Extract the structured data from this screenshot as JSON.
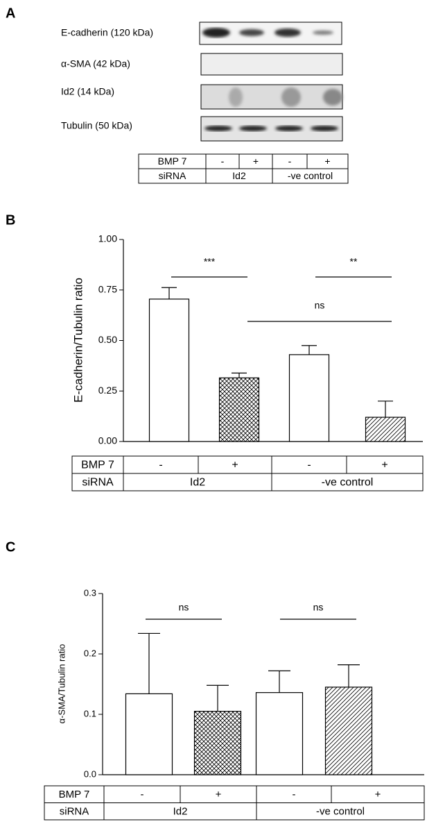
{
  "panel_labels": [
    "A",
    "B",
    "C"
  ],
  "blot": {
    "bands": [
      "E-cadherin (120 kDa)",
      "α-SMA (42 kDa)",
      "Id2 (14 kDa)",
      "Tubulin (50 kDa)"
    ],
    "table": {
      "rows": [
        [
          "BMP 7",
          "-",
          "+",
          "-",
          "+"
        ],
        [
          "siRNA",
          "Id2",
          "-ve control"
        ]
      ]
    }
  },
  "chart_data": [
    {
      "type": "bar",
      "y_label": "E-cadherin/Tubulin ratio",
      "values": [
        0.705,
        0.315,
        0.43,
        0.12
      ],
      "errors": [
        0.057,
        0.024,
        0.045,
        0.08
      ],
      "patterns": [
        "none",
        "crosshatch",
        "none",
        "diagonal"
      ],
      "color": "#ffffff",
      "ylim": [
        0,
        1
      ],
      "yticks": [
        {
          "value": 0,
          "label": "0.00"
        },
        {
          "value": 0.25,
          "label": "0.25"
        },
        {
          "value": 0.5,
          "label": "0.50"
        },
        {
          "value": 0.75,
          "label": "0.75"
        },
        {
          "value": 1,
          "label": "1.00"
        }
      ],
      "annotations": [
        "***",
        "**",
        "ns"
      ],
      "table": {
        "rows": [
          [
            "BMP 7",
            "-",
            "+",
            "-",
            "+"
          ],
          [
            "siRNA",
            "Id2",
            "-ve control"
          ]
        ]
      }
    },
    {
      "type": "bar",
      "y_label": "α-SMA/Tubulin ratio",
      "values": [
        0.134,
        0.105,
        0.136,
        0.145
      ],
      "errors": [
        0.1,
        0.043,
        0.036,
        0.037
      ],
      "patterns": [
        "none",
        "crosshatch",
        "none",
        "diagonal"
      ],
      "color": "#ffffff",
      "ylim": [
        0,
        0.3
      ],
      "yticks": [
        {
          "value": 0,
          "label": "0.0"
        },
        0.1,
        0.2,
        0.3
      ],
      "annotations": [
        "ns",
        "ns"
      ],
      "table": {
        "rows": [
          [
            "BMP 7",
            "-",
            "+",
            "-",
            "+"
          ],
          [
            "siRNA",
            "Id2",
            "-ve control"
          ]
        ]
      }
    }
  ]
}
